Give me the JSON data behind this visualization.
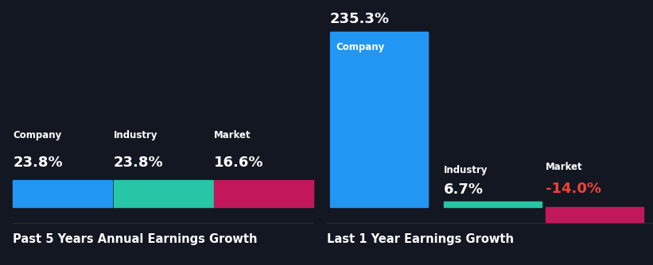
{
  "bg_color": "#131722",
  "divider_color": "#2a2e39",
  "chart1": {
    "title": "Past 5 Years Annual Earnings Growth",
    "title_color": "#ffffff",
    "title_fontsize": 10.5,
    "categories": [
      "Company",
      "Industry",
      "Market"
    ],
    "values": [
      23.8,
      23.8,
      16.6
    ],
    "colors": [
      "#2196f3",
      "#26c6a6",
      "#c2185b"
    ],
    "label_color": "#ffffff",
    "value_color": "#ffffff",
    "value_fontsize": 13,
    "label_fontsize": 8.5
  },
  "chart2": {
    "title": "Last 1 Year Earnings Growth",
    "title_color": "#ffffff",
    "title_fontsize": 10.5,
    "categories": [
      "Company",
      "Industry",
      "Market"
    ],
    "values": [
      235.3,
      6.7,
      -14.0
    ],
    "colors": [
      "#2196f3",
      "#26c6a6",
      "#c2185b"
    ],
    "label_color": "#ffffff",
    "value_colors": [
      "#ffffff",
      "#ffffff",
      "#f44336"
    ],
    "label_fontsize": 8.5,
    "value_fontsize": 13
  }
}
